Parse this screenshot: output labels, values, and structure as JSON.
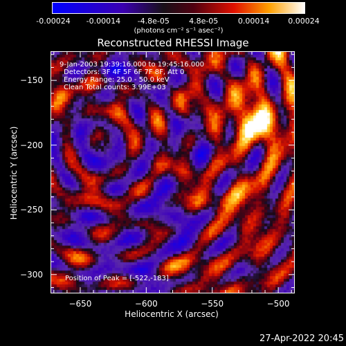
{
  "colorbar": {
    "ticks": [
      "-0.00024",
      "-0.00014",
      "-4.8e-05",
      "4.8e-05",
      "0.00014",
      "0.00024"
    ],
    "unit": "(photons cm⁻² s⁻¹ asec⁻²)",
    "colors": [
      "#0000ff",
      "#3000a0",
      "#101010",
      "#c00000",
      "#ff8000",
      "#ffffff"
    ]
  },
  "chart_data": {
    "type": "heatmap",
    "title": "Reconstructed RHESSI Image",
    "xlabel": "Heliocentric X (arcsec)",
    "ylabel": "Heliocentric Y (arcsec)",
    "xlim": [
      -672,
      -488
    ],
    "ylim": [
      -314,
      -128
    ],
    "xticks": [
      -650,
      -600,
      -550,
      -500
    ],
    "yticks": [
      -150,
      -200,
      -250,
      -300
    ],
    "xtick_labels": [
      "−650",
      "−600",
      "−550",
      "−500"
    ],
    "ytick_labels": [
      "−150",
      "−200",
      "−250",
      "−300"
    ],
    "zlim": [
      -0.00024,
      0.00024
    ],
    "peak": [
      -522,
      -183
    ],
    "annotations": [
      "9-Jan-2003 19:39:16.000 to 19:45:16.000",
      "Detectors: 3F 4F 5F 6F 7F 8F, Att 0",
      "Energy Range: 25.0 - 50.0 keV",
      "Clean     Total counts: 3.99E+03"
    ],
    "peak_label": "Position of Peak = [-522,-183]"
  },
  "footer": {
    "timestamp": "27-Apr-2022 20:45"
  }
}
